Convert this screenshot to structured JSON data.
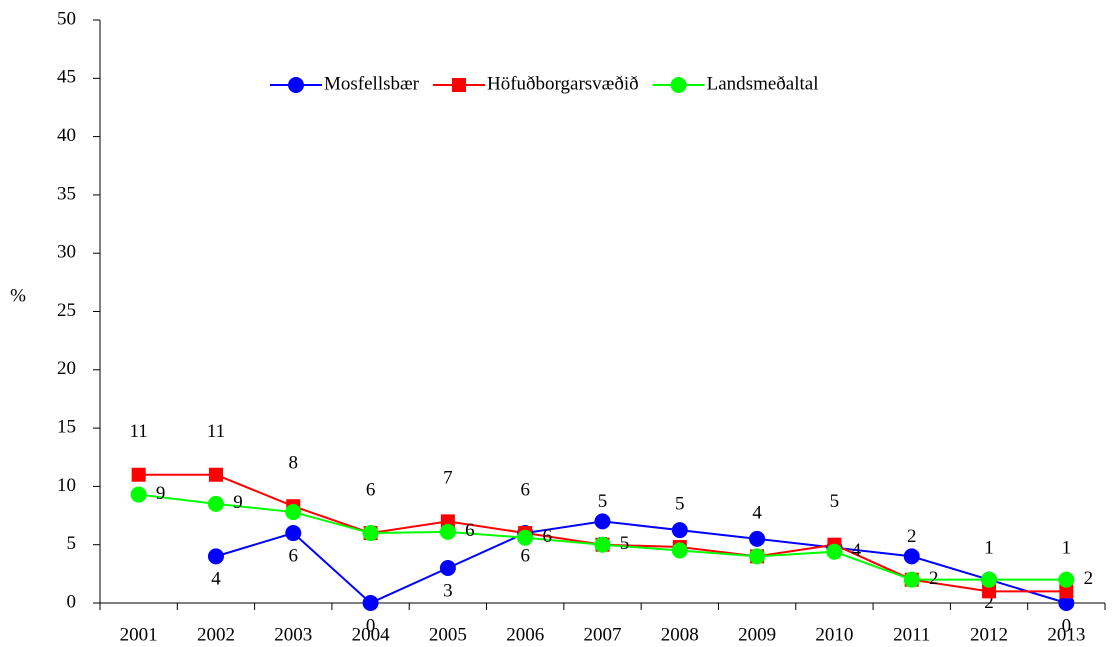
{
  "chart_data": {
    "type": "line",
    "y_label": "%",
    "categories": [
      "2001",
      "2002",
      "2003",
      "2004",
      "2005",
      "2006",
      "2007",
      "2008",
      "2009",
      "2010",
      "2011",
      "2012",
      "2013"
    ],
    "series": [
      {
        "name": "Mosfellsbær",
        "color": "#0000ff",
        "marker": "circle",
        "values": [
          null,
          4,
          6,
          0,
          3,
          6,
          7,
          6.25,
          5.5,
          4.75,
          4,
          2,
          0
        ],
        "value_labels": [
          null,
          "4",
          "6",
          "0",
          "3",
          "6",
          "7",
          null,
          null,
          null,
          "4",
          "2",
          "0"
        ]
      },
      {
        "name": "Höfuðborgarsvæðið",
        "color": "#ff0000",
        "marker": "square",
        "values": [
          11,
          11,
          8.3,
          6,
          7,
          6,
          5,
          4.8,
          4,
          5,
          2,
          1,
          1
        ],
        "value_labels": [
          "11",
          "11",
          "8",
          "6",
          "7",
          "6",
          "5",
          "5",
          "4",
          "5",
          "2",
          "1",
          "1"
        ]
      },
      {
        "name": "Landsmeðaltal",
        "color": "#00ff00",
        "marker": "circle",
        "values": [
          9.3,
          8.5,
          7.8,
          6,
          6.1,
          5.6,
          5,
          4.5,
          4,
          4.4,
          2,
          2,
          2
        ],
        "value_labels": [
          "9",
          "9",
          null,
          null,
          "6",
          "6",
          "5",
          null,
          null,
          "4",
          "2",
          null,
          "2"
        ]
      }
    ],
    "ylim": [
      0,
      50
    ],
    "yticks": [
      0,
      5,
      10,
      15,
      20,
      25,
      30,
      35,
      40,
      45,
      50
    ],
    "legend": "top"
  }
}
